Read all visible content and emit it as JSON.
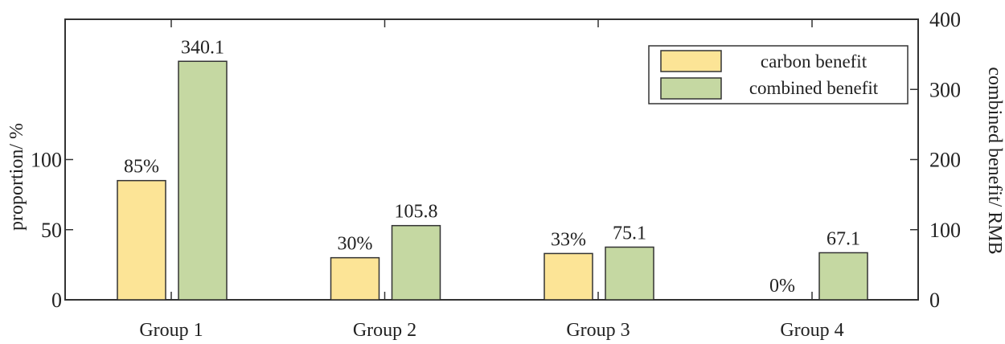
{
  "chart_data": {
    "type": "bar",
    "categories": [
      "Group 1",
      "Group 2",
      "Group 3",
      "Group 4"
    ],
    "series": [
      {
        "name": "carbon benefit",
        "axis": "left",
        "values": [
          85,
          30,
          33,
          0
        ],
        "labels": [
          "85%",
          "30%",
          "33%",
          "0%"
        ],
        "color": "#fce496"
      },
      {
        "name": "combined benefit",
        "axis": "right",
        "values": [
          340.1,
          105.8,
          75.1,
          67.1
        ],
        "labels": [
          "340.1",
          "105.8",
          "75.1",
          "67.1"
        ],
        "color": "#c5d8a2"
      }
    ],
    "ylabel": "proportion/ %",
    "y2label": "combined benefit/ RMB",
    "ylim": [
      0,
      200
    ],
    "y2lim": [
      0,
      400
    ],
    "yticks": [
      "0",
      "50",
      "100"
    ],
    "y2ticks": [
      "0",
      "100",
      "200",
      "300",
      "400"
    ],
    "grid": false,
    "legend": "top-right"
  }
}
